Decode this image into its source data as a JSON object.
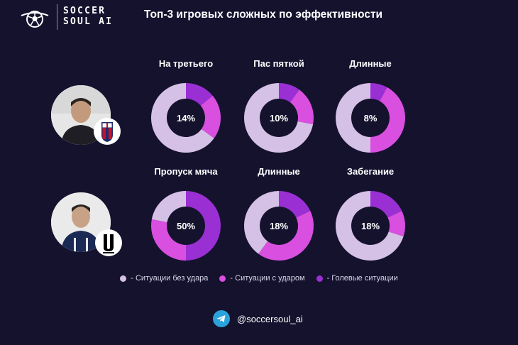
{
  "header": {
    "brand_line1": "SOCCER",
    "brand_line2": "SOUL AI",
    "title": "Топ-3 игровых сложных по эффективности"
  },
  "colors": {
    "no_shot": "#d6c1e6",
    "with_shot": "#d94fe0",
    "goal": "#9a2fd4",
    "background": "#15122e"
  },
  "players": [
    {
      "name": "avatar-coach-bologna",
      "badge": "bologna-crest-icon"
    },
    {
      "name": "avatar-coach-juventus",
      "badge": "juventus-crest-icon"
    }
  ],
  "chart_data": {
    "type": "pie",
    "style": "donut",
    "legend_position": "bottom",
    "series_names": [
      "- Ситуации без удара",
      "- Ситуации с ударом",
      "- Голевые ситуации"
    ],
    "rows": [
      {
        "charts": [
          {
            "title": "На третьего",
            "label": "14%",
            "values": [
              65,
              21,
              14
            ]
          },
          {
            "title": "Пас пяткой",
            "label": "10%",
            "values": [
              72,
              18,
              10
            ]
          },
          {
            "title": "Длинные",
            "label": "8%",
            "values": [
              50,
              42,
              8
            ]
          }
        ]
      },
      {
        "charts": [
          {
            "title": "Пропуск мяча",
            "label": "50%",
            "values": [
              22,
              28,
              50
            ]
          },
          {
            "title": "Длинные",
            "label": "18%",
            "values": [
              40,
              42,
              18
            ]
          },
          {
            "title": "Забегание",
            "label": "18%",
            "values": [
              70,
              12,
              18
            ]
          }
        ]
      }
    ]
  },
  "footer": {
    "handle": "@soccersoul_ai",
    "icon": "telegram-icon"
  }
}
